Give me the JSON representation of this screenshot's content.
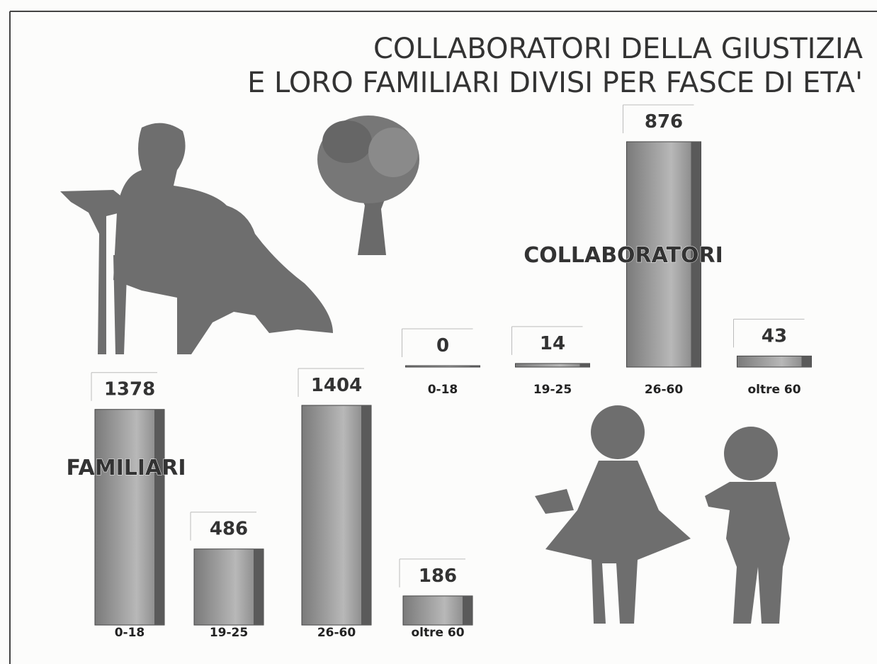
{
  "title": [
    "COLLABORATORI DELLA GIUSTIZIA",
    "E LORO FAMILIARI DIVISI PER FASCE DI ETA'"
  ],
  "chart_data": [
    {
      "type": "bar",
      "title": "COLLABORATORI",
      "categories": [
        "0-18",
        "19-25",
        "26-60",
        "oltre 60"
      ],
      "values": [
        0,
        14,
        876,
        43
      ],
      "color": "#7a7a7a"
    },
    {
      "type": "bar",
      "title": "FAMILIARI",
      "categories": [
        "0-18",
        "19-25",
        "26-60",
        "oltre 60"
      ],
      "values": [
        1378,
        486,
        1404,
        186
      ],
      "color": "#7a7a7a"
    }
  ]
}
